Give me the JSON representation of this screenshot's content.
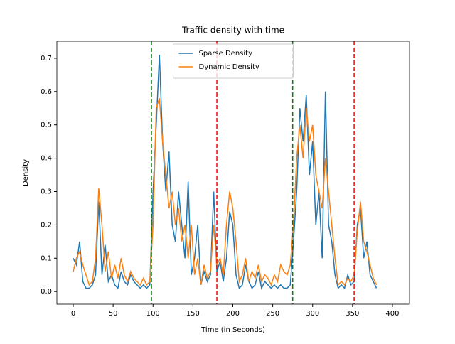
{
  "chart_data": {
    "type": "line",
    "title": "Traffic density with time",
    "x_label": "Time (in Seconds)",
    "y_label": "Density",
    "x": [
      0,
      4,
      8,
      12,
      16,
      20,
      24,
      28,
      32,
      36,
      40,
      44,
      48,
      52,
      56,
      60,
      64,
      68,
      72,
      76,
      80,
      84,
      88,
      92,
      96,
      100,
      104,
      108,
      112,
      116,
      120,
      124,
      128,
      132,
      136,
      140,
      144,
      148,
      152,
      156,
      160,
      164,
      168,
      172,
      176,
      180,
      184,
      188,
      192,
      196,
      200,
      204,
      208,
      212,
      216,
      220,
      224,
      228,
      232,
      236,
      240,
      244,
      248,
      252,
      256,
      260,
      264,
      268,
      272,
      276,
      280,
      284,
      288,
      292,
      296,
      300,
      304,
      308,
      312,
      316,
      320,
      324,
      328,
      332,
      336,
      340,
      344,
      348,
      352,
      356,
      360,
      364,
      368,
      372,
      376,
      380
    ],
    "series": [
      {
        "name": "Sparse Density",
        "color": "#1f77b4",
        "values": [
          0.1,
          0.08,
          0.15,
          0.03,
          0.01,
          0.01,
          0.02,
          0.05,
          0.27,
          0.05,
          0.14,
          0.03,
          0.05,
          0.02,
          0.01,
          0.06,
          0.03,
          0.02,
          0.05,
          0.03,
          0.02,
          0.01,
          0.02,
          0.01,
          0.02,
          0.3,
          0.5,
          0.71,
          0.45,
          0.3,
          0.42,
          0.2,
          0.15,
          0.3,
          0.2,
          0.1,
          0.33,
          0.05,
          0.1,
          0.2,
          0.02,
          0.06,
          0.03,
          0.05,
          0.3,
          0.06,
          0.09,
          0.03,
          0.1,
          0.24,
          0.2,
          0.05,
          0.01,
          0.02,
          0.08,
          0.03,
          0.01,
          0.02,
          0.06,
          0.01,
          0.03,
          0.02,
          0.01,
          0.02,
          0.01,
          0.02,
          0.01,
          0.01,
          0.02,
          0.15,
          0.3,
          0.55,
          0.45,
          0.59,
          0.35,
          0.45,
          0.2,
          0.3,
          0.1,
          0.6,
          0.2,
          0.15,
          0.05,
          0.01,
          0.02,
          0.01,
          0.05,
          0.02,
          0.03,
          0.2,
          0.25,
          0.1,
          0.15,
          0.05,
          0.03,
          0.01
        ]
      },
      {
        "name": "Dynamic Density",
        "color": "#ff7f0e",
        "values": [
          0.06,
          0.1,
          0.12,
          0.08,
          0.05,
          0.02,
          0.03,
          0.1,
          0.31,
          0.2,
          0.06,
          0.12,
          0.04,
          0.08,
          0.04,
          0.1,
          0.05,
          0.03,
          0.06,
          0.04,
          0.03,
          0.02,
          0.04,
          0.02,
          0.03,
          0.2,
          0.55,
          0.58,
          0.45,
          0.35,
          0.25,
          0.3,
          0.2,
          0.25,
          0.15,
          0.2,
          0.1,
          0.2,
          0.05,
          0.1,
          0.02,
          0.08,
          0.04,
          0.06,
          0.2,
          0.08,
          0.1,
          0.05,
          0.2,
          0.3,
          0.25,
          0.15,
          0.03,
          0.05,
          0.1,
          0.03,
          0.06,
          0.04,
          0.08,
          0.03,
          0.05,
          0.04,
          0.02,
          0.05,
          0.03,
          0.08,
          0.06,
          0.05,
          0.08,
          0.2,
          0.4,
          0.5,
          0.4,
          0.55,
          0.45,
          0.5,
          0.35,
          0.3,
          0.25,
          0.4,
          0.3,
          0.2,
          0.1,
          0.02,
          0.03,
          0.02,
          0.04,
          0.03,
          0.05,
          0.18,
          0.27,
          0.15,
          0.12,
          0.08,
          0.04,
          0.02
        ]
      }
    ],
    "vlines": [
      {
        "x": 98,
        "color": "#008000"
      },
      {
        "x": 180,
        "color": "#ff0000"
      },
      {
        "x": 275,
        "color": "#008000"
      },
      {
        "x": 352,
        "color": "#ff0000"
      }
    ],
    "xlim": [
      -20.5,
      421.4
    ],
    "ylim": [
      -0.038,
      0.751
    ],
    "xticks": [
      0,
      50,
      100,
      150,
      200,
      250,
      300,
      350,
      400
    ],
    "yticks": [
      {
        "value": 0,
        "label": "0.0"
      },
      0.1,
      0.2,
      0.3,
      0.4,
      0.5,
      0.6,
      0.7
    ],
    "grid": false,
    "legend": "upper center"
  }
}
